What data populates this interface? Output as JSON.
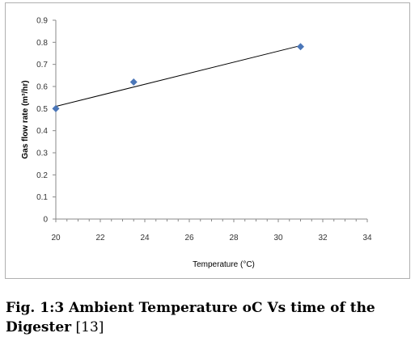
{
  "chart_data": {
    "type": "scatter",
    "xlabel": "Temperature (°C)",
    "ylabel": "Gas flow rate (m³/hr)",
    "xlim": [
      20,
      34
    ],
    "ylim": [
      0,
      0.9
    ],
    "x_ticks": [
      "20",
      "22",
      "24",
      "26",
      "28",
      "30",
      "32",
      "34"
    ],
    "y_ticks": [
      "0",
      "0.1",
      "0.2",
      "0.3",
      "0.4",
      "0.5",
      "0.6",
      "0.7",
      "0.8",
      "0.9"
    ],
    "points": [
      {
        "x": 20,
        "y": 0.5
      },
      {
        "x": 23.5,
        "y": 0.62
      },
      {
        "x": 31,
        "y": 0.78
      }
    ],
    "trendline": {
      "x": [
        20,
        31
      ],
      "y": [
        0.51,
        0.785
      ]
    },
    "marker": "diamond",
    "marker_color": "#4a76b8",
    "line_color": "#000000",
    "grid": false,
    "legend": "none"
  },
  "caption": {
    "bold_text": "Fig. 1:3 Ambient Temperature oC Vs time of the Digester",
    "ref_text": " [13]"
  }
}
